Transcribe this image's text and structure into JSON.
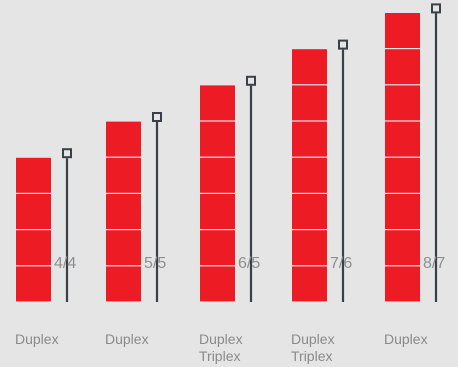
{
  "background_color": "#e5e5e5",
  "bar_color": "#ed1c24",
  "pole_color": "#3a4049",
  "text_color": "#8a8a8a",
  "columns": [
    {
      "floors": 4,
      "ratio": "4/4",
      "labels": [
        "Duplex"
      ]
    },
    {
      "floors": 5,
      "ratio": "5/5",
      "labels": [
        "Duplex"
      ]
    },
    {
      "floors": 6,
      "ratio": "6/5",
      "labels": [
        "Duplex",
        "Triplex"
      ]
    },
    {
      "floors": 7,
      "ratio": "7/6",
      "labels": [
        "Duplex",
        "Triplex"
      ]
    },
    {
      "floors": 8,
      "ratio": "8/7",
      "labels": [
        "Duplex"
      ]
    }
  ]
}
